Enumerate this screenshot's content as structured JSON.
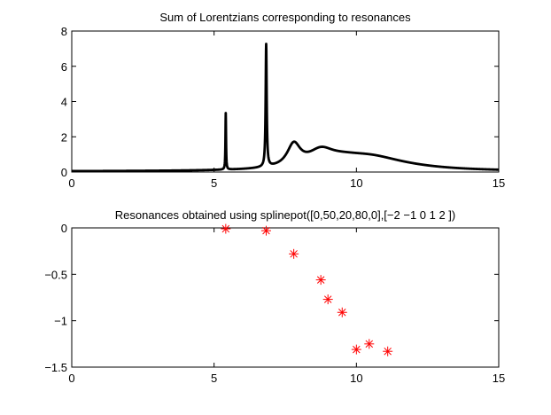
{
  "chart_data": [
    {
      "type": "line",
      "title": "Sum of Lorentzians corresponding to resonances",
      "xlabel": "",
      "ylabel": "",
      "xlim": [
        0,
        15
      ],
      "ylim": [
        0,
        8
      ],
      "xticks": [
        0,
        5,
        10,
        15
      ],
      "yticks": [
        0,
        2,
        4,
        6,
        8
      ],
      "xtick_labels": [
        "0",
        "5",
        "10",
        "15"
      ],
      "ytick_labels": [
        "0",
        "2",
        "4",
        "6",
        "8"
      ],
      "grid": false,
      "line_color": "#000000",
      "resonances": [
        {
          "center": 5.41,
          "width": 0.012,
          "amplitude": 3.2
        },
        {
          "center": 6.83,
          "width": 0.022,
          "amplitude": 6.95
        },
        {
          "center": 7.8,
          "width": 0.28,
          "amplitude": 1.25
        },
        {
          "center": 8.75,
          "width": 0.55,
          "amplitude": 0.82
        },
        {
          "center": 9.5,
          "width": 0.85,
          "amplitude": 0.32
        },
        {
          "center": 10.45,
          "width": 1.3,
          "amplitude": 0.55
        },
        {
          "center": 11.1,
          "width": 2.0,
          "amplitude": 0.22
        }
      ],
      "baseline": 0.03
    },
    {
      "type": "scatter",
      "title": "Resonances obtained using splinepot([0,50,20,80,0],[−2 −1 0 1 2 ])",
      "xlabel": "",
      "ylabel": "",
      "xlim": [
        0,
        15
      ],
      "ylim": [
        -1.5,
        0
      ],
      "xticks": [
        0,
        5,
        10,
        15
      ],
      "yticks": [
        0,
        -0.5,
        -1,
        -1.5
      ],
      "xtick_labels": [
        "0",
        "5",
        "10",
        "15"
      ],
      "ytick_labels": [
        "0",
        "−0.5",
        "−1",
        "−1.5"
      ],
      "grid": false,
      "marker": "asterisk",
      "marker_color": "#ff0000",
      "x": [
        5.41,
        6.83,
        7.8,
        8.75,
        9.0,
        9.5,
        10.0,
        10.45,
        11.1
      ],
      "y": [
        -0.01,
        -0.03,
        -0.28,
        -0.56,
        -0.77,
        -0.91,
        -1.31,
        -1.25,
        -1.33
      ]
    }
  ]
}
